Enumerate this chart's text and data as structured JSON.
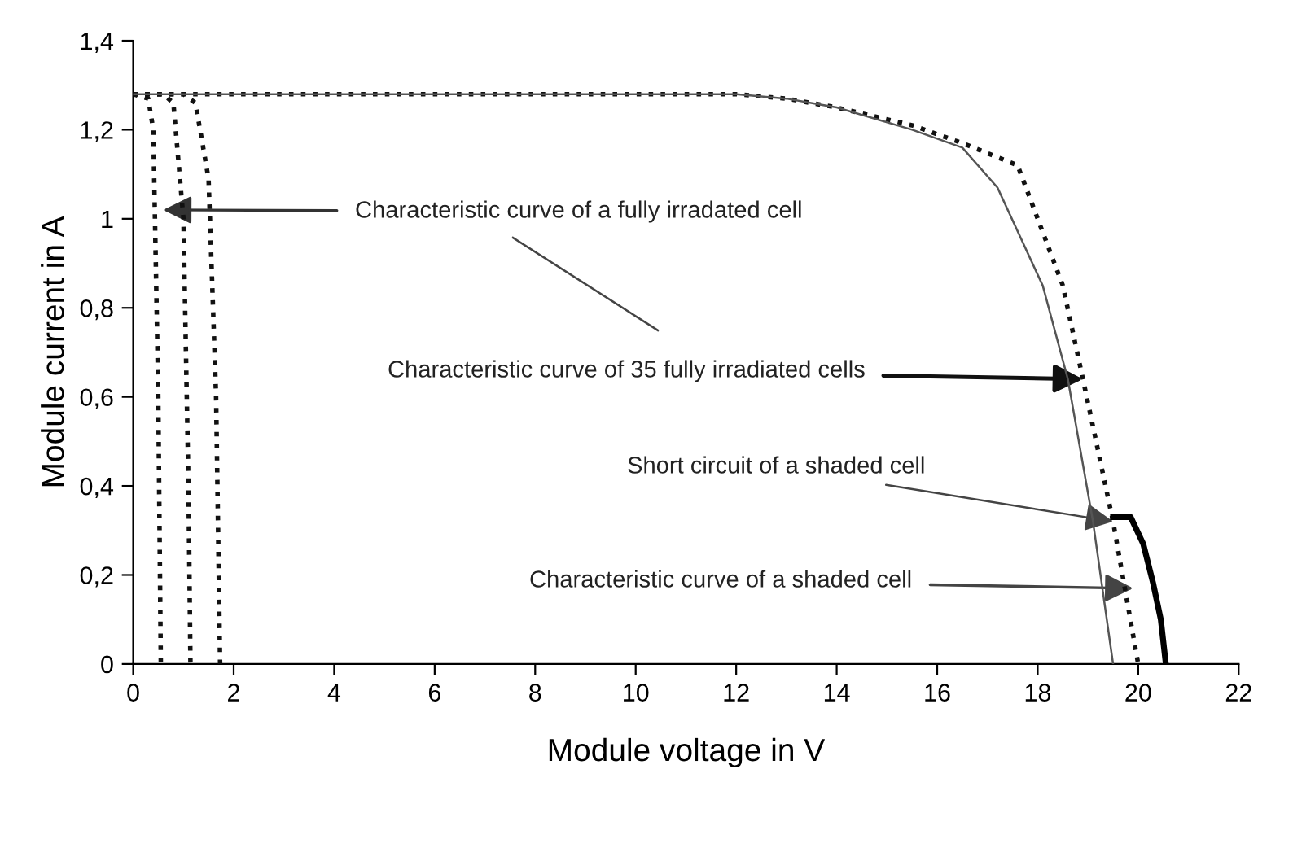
{
  "chart_data": {
    "type": "line",
    "xlabel": "Module voltage in V",
    "ylabel": "Module current in A",
    "xlim": [
      0,
      22
    ],
    "xticks": [
      0,
      2,
      4,
      6,
      8,
      10,
      12,
      14,
      16,
      18,
      20,
      22
    ],
    "ylim": [
      0,
      1.4
    ],
    "yticks": [
      0,
      {
        "value": 0.2,
        "label": "0,2"
      },
      {
        "value": 0.4,
        "label": "0,4"
      },
      {
        "value": 0.6,
        "label": "0,6"
      },
      {
        "value": 0.8,
        "label": "0,8"
      },
      1,
      {
        "value": 1.2,
        "label": "1,2"
      },
      {
        "value": 1.4,
        "label": "1,4"
      }
    ],
    "grid": false,
    "legend": false,
    "marker": "none",
    "series": [
      {
        "color": "#111111",
        "line_style": "dotted",
        "x": [
          0,
          0.3,
          0.4,
          0.5,
          0.55
        ],
        "values": [
          1.28,
          1.27,
          1.2,
          0.6,
          0
        ]
      },
      {
        "color": "#111111",
        "line_style": "dotted",
        "x": [
          0,
          0.6,
          0.8,
          1.0,
          1.1,
          1.14
        ],
        "values": [
          1.28,
          1.28,
          1.26,
          1.0,
          0.4,
          0
        ]
      },
      {
        "color": "#111111",
        "line_style": "dotted",
        "x": [
          0,
          1.0,
          1.24,
          1.5,
          1.65,
          1.73
        ],
        "values": [
          1.28,
          1.28,
          1.26,
          1.09,
          0.6,
          0
        ]
      },
      {
        "color": "#111111",
        "line_style": "dotted",
        "x": [
          0,
          10,
          12,
          13,
          14,
          15.5,
          16.5,
          17.6,
          18.5,
          18.9,
          19.5,
          20.0
        ],
        "values": [
          1.28,
          1.28,
          1.28,
          1.27,
          1.25,
          1.21,
          1.17,
          1.12,
          0.85,
          0.64,
          0.32,
          0
        ]
      },
      {
        "color": "#555555",
        "line_style": "solid",
        "x": [
          0,
          10,
          12,
          13,
          14,
          15.5,
          16.5,
          17.2,
          18.1,
          18.6,
          19.1,
          19.5
        ],
        "values": [
          1.28,
          1.28,
          1.28,
          1.27,
          1.25,
          1.2,
          1.16,
          1.07,
          0.85,
          0.64,
          0.32,
          0
        ]
      },
      {
        "color": "#000000",
        "line_style": "solid",
        "x": [
          19.5,
          19.85,
          20.1,
          20.3,
          20.45,
          20.55
        ],
        "values": [
          0.33,
          0.33,
          0.27,
          0.18,
          0.1,
          0
        ]
      }
    ],
    "annotations": [
      {
        "text": "Characteristic curve of a fully irradated cell",
        "x": 0.6,
        "y": 1.02
      },
      {
        "text": "Characteristic curve of 35 fully irradiated cells",
        "x": 18.9,
        "y": 0.64
      },
      {
        "text": "Short circuit of a shaded cell",
        "x": 19.5,
        "y": 0.32
      },
      {
        "text": "Characteristic curve of a shaded cell",
        "x": 19.9,
        "y": 0.17
      }
    ]
  }
}
